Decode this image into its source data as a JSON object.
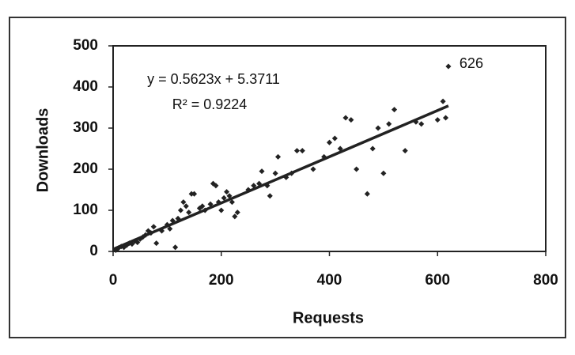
{
  "chart_data": {
    "type": "scatter",
    "x_label": "Requests",
    "y_label": "Downloads",
    "x": [
      5,
      10,
      15,
      20,
      25,
      30,
      35,
      40,
      45,
      50,
      55,
      60,
      65,
      70,
      75,
      80,
      90,
      100,
      105,
      110,
      115,
      120,
      125,
      130,
      135,
      140,
      145,
      150,
      160,
      165,
      170,
      180,
      185,
      190,
      195,
      200,
      205,
      210,
      215,
      220,
      225,
      230,
      250,
      260,
      270,
      275,
      285,
      290,
      300,
      305,
      320,
      330,
      340,
      350,
      370,
      390,
      400,
      410,
      420,
      430,
      440,
      450,
      470,
      480,
      490,
      500,
      510,
      520,
      540,
      560,
      570,
      600,
      610,
      615,
      620
    ],
    "values": [
      3,
      8,
      12,
      10,
      15,
      20,
      18,
      25,
      22,
      30,
      35,
      40,
      50,
      45,
      60,
      20,
      50,
      65,
      55,
      75,
      10,
      80,
      100,
      120,
      110,
      95,
      140,
      140,
      105,
      110,
      100,
      115,
      165,
      160,
      120,
      100,
      130,
      145,
      135,
      120,
      85,
      95,
      150,
      160,
      165,
      195,
      160,
      135,
      190,
      230,
      180,
      190,
      245,
      245,
      200,
      230,
      265,
      275,
      250,
      325,
      320,
      200,
      140,
      250,
      300,
      190,
      310,
      345,
      245,
      315,
      310,
      320,
      365,
      325,
      450
    ],
    "color": "#222222",
    "trendline": {
      "slope": 0.5623,
      "intercept": 5.3711,
      "equation": "y = 0.5623x + 5.3711",
      "r_squared": "R² = 0.9224"
    },
    "annotation": "626",
    "xlim": [
      0,
      800
    ],
    "xticks": [
      0,
      200,
      400,
      600,
      800
    ],
    "ylim": [
      0,
      500
    ],
    "yticks": [
      0,
      100,
      200,
      300,
      400,
      500
    ],
    "grid": false
  }
}
